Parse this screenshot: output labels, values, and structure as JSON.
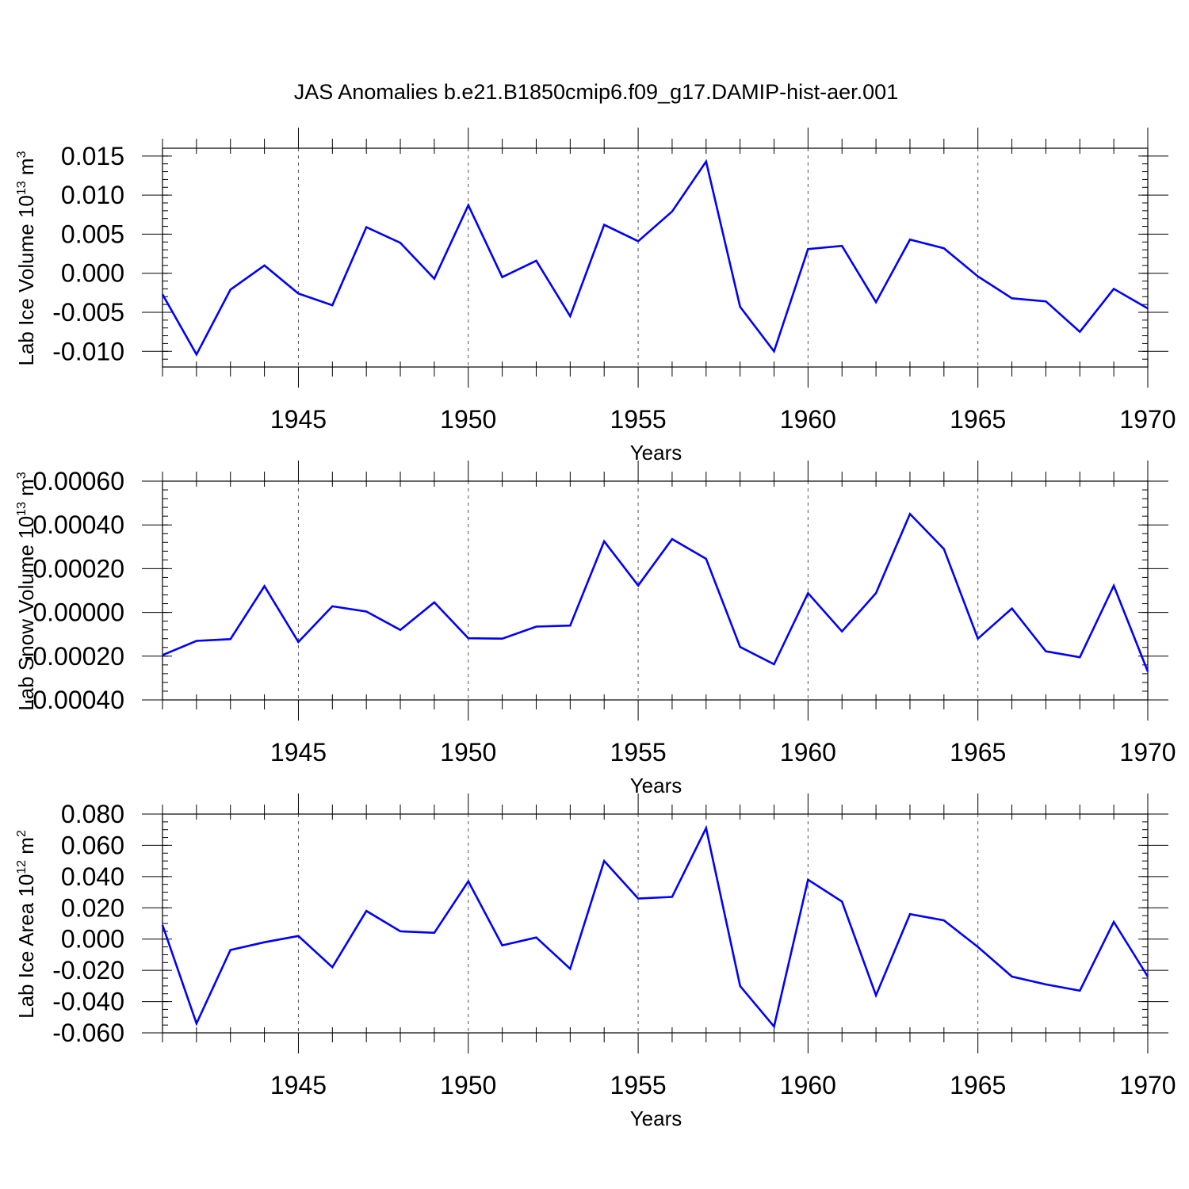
{
  "figure_title": "JAS Anomalies b.e21.B1850cmip6.f09_g17.DAMIP-hist-aer.001",
  "colors": {
    "line": "#0000ff",
    "axis": "#000000",
    "grid": "#555555"
  },
  "chart_data": [
    {
      "type": "line",
      "title": "JAS Anomalies b.e21.B1850cmip6.f09_g17.DAMIP-hist-aer.001",
      "ylabel": "Lab Ice Volume 10",
      "ylabel_sup": "13",
      "ylabel_unit": "m",
      "ylabel_unit_sup": "3",
      "xlabel": "Years",
      "xlim": [
        1941,
        1970
      ],
      "ylim": [
        -0.012,
        0.016
      ],
      "yticks": [
        -0.01,
        -0.005,
        0.0,
        0.005,
        0.01,
        0.015
      ],
      "ytick_labels": [
        "-0.010",
        "-0.005",
        "0.000",
        "0.005",
        "0.010",
        "0.015"
      ],
      "yminor_step": 0.001,
      "xticks": [
        1945,
        1950,
        1955,
        1960,
        1965,
        1970
      ],
      "xtick_labels": [
        "1945",
        "1950",
        "1955",
        "1960",
        "1965",
        "1970"
      ],
      "x": [
        1941,
        1942,
        1943,
        1944,
        1945,
        1946,
        1947,
        1948,
        1949,
        1950,
        1951,
        1952,
        1953,
        1954,
        1955,
        1956,
        1957,
        1958,
        1959,
        1960,
        1961,
        1962,
        1963,
        1964,
        1965,
        1966,
        1967,
        1968,
        1969,
        1970
      ],
      "series": [
        {
          "name": "Lab Ice Volume",
          "values": [
            -0.0027,
            -0.0104,
            -0.0021,
            0.001,
            -0.0026,
            -0.0041,
            0.0059,
            0.0039,
            -0.0007,
            0.0087,
            -0.0005,
            0.0016,
            -0.0055,
            0.0062,
            0.0041,
            0.0079,
            0.0143,
            -0.0043,
            -0.01,
            0.0031,
            0.0035,
            -0.0037,
            0.0043,
            0.0032,
            -0.0004,
            -0.0032,
            -0.0036,
            -0.0075,
            -0.002,
            -0.0045
          ]
        }
      ]
    },
    {
      "type": "line",
      "ylabel": "Lab Snow Volume 10",
      "ylabel_sup": "13",
      "ylabel_unit": "m",
      "ylabel_unit_sup": "3",
      "xlabel": "Years",
      "xlim": [
        1941,
        1970
      ],
      "ylim": [
        -0.0004,
        0.0006
      ],
      "yticks": [
        -0.0004,
        -0.0002,
        0.0,
        0.0002,
        0.0004,
        0.0006
      ],
      "ytick_labels": [
        "-0.00040",
        "-0.00020",
        "0.00000",
        "0.00020",
        "0.00040",
        "0.00060"
      ],
      "yminor_step": 4e-05,
      "xticks": [
        1945,
        1950,
        1955,
        1960,
        1965,
        1970
      ],
      "xtick_labels": [
        "1945",
        "1950",
        "1955",
        "1960",
        "1965",
        "1970"
      ],
      "x": [
        1941,
        1942,
        1943,
        1944,
        1945,
        1946,
        1947,
        1948,
        1949,
        1950,
        1951,
        1952,
        1953,
        1954,
        1955,
        1956,
        1957,
        1958,
        1959,
        1960,
        1961,
        1962,
        1963,
        1964,
        1965,
        1966,
        1967,
        1968,
        1969,
        1970
      ],
      "series": [
        {
          "name": "Lab Snow Volume",
          "values": [
            -0.000195,
            -0.00013,
            -0.000122,
            0.00012,
            -0.000135,
            2.8e-05,
            4e-06,
            -8e-05,
            4.6e-05,
            -0.000118,
            -0.00012,
            -6.5e-05,
            -6e-05,
            0.000325,
            0.000123,
            0.000335,
            0.000245,
            -0.000158,
            -0.000237,
            8.8e-05,
            -8.7e-05,
            8.8e-05,
            0.00045,
            0.00029,
            -0.00012,
            1.8e-05,
            -0.000178,
            -0.000205,
            0.000122,
            -0.00027
          ]
        }
      ]
    },
    {
      "type": "line",
      "ylabel": "Lab Ice Area 10",
      "ylabel_sup": "12",
      "ylabel_unit": "m",
      "ylabel_unit_sup": "2",
      "xlabel": "Years",
      "xlim": [
        1941,
        1970
      ],
      "ylim": [
        -0.06,
        0.08
      ],
      "yticks": [
        -0.06,
        -0.04,
        -0.02,
        0.0,
        0.02,
        0.04,
        0.06,
        0.08
      ],
      "ytick_labels": [
        "-0.060",
        "-0.040",
        "-0.020",
        "0.000",
        "0.020",
        "0.040",
        "0.060",
        "0.080"
      ],
      "yminor_step": 0.005,
      "xticks": [
        1945,
        1950,
        1955,
        1960,
        1965,
        1970
      ],
      "xtick_labels": [
        "1945",
        "1950",
        "1955",
        "1960",
        "1965",
        "1970"
      ],
      "x": [
        1941,
        1942,
        1943,
        1944,
        1945,
        1946,
        1947,
        1948,
        1949,
        1950,
        1951,
        1952,
        1953,
        1954,
        1955,
        1956,
        1957,
        1958,
        1959,
        1960,
        1961,
        1962,
        1963,
        1964,
        1965,
        1966,
        1967,
        1968,
        1969,
        1970
      ],
      "series": [
        {
          "name": "Lab Ice Area",
          "values": [
            0.009,
            -0.054,
            -0.007,
            -0.002,
            0.002,
            -0.018,
            0.018,
            0.005,
            0.004,
            0.037,
            -0.004,
            0.001,
            -0.019,
            0.05,
            0.026,
            0.027,
            0.071,
            -0.03,
            -0.056,
            0.038,
            0.024,
            -0.036,
            0.016,
            0.012,
            -0.005,
            -0.024,
            -0.029,
            -0.033,
            0.011,
            -0.024
          ]
        }
      ]
    }
  ]
}
